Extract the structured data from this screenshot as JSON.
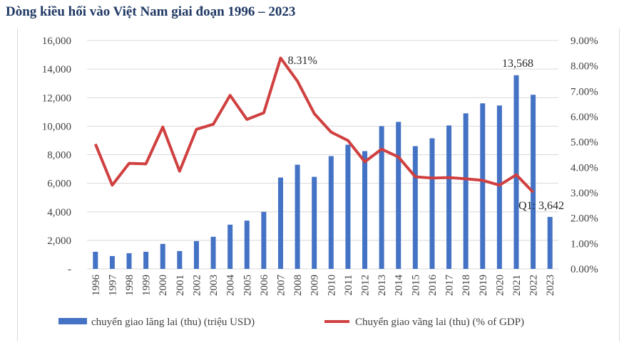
{
  "title": "Dòng kiều hối vào Việt Nam giai đoạn 1996 – 2023",
  "chart_data": {
    "type": "bar+line",
    "categories": [
      "1996",
      "1997",
      "1998",
      "1999",
      "2000",
      "2001",
      "2002",
      "2003",
      "2004",
      "2005",
      "2006",
      "2007",
      "2008",
      "2009",
      "2010",
      "2011",
      "2012",
      "2013",
      "2014",
      "2015",
      "2016",
      "2017",
      "2018",
      "2019",
      "2020",
      "2021",
      "2022",
      "2023"
    ],
    "series": [
      {
        "name": "chuyển giao lăng lai (thu) (triệu USD)",
        "type": "bar",
        "axis": "left",
        "color": "#4472c4",
        "values": [
          1200,
          900,
          1100,
          1200,
          1750,
          1250,
          1950,
          2250,
          3100,
          3380,
          4000,
          6400,
          7300,
          6450,
          7900,
          8700,
          8250,
          10000,
          10300,
          8600,
          9150,
          10050,
          10900,
          11600,
          11450,
          13568,
          12200,
          3642
        ]
      },
      {
        "name": "Chuyển giao vãng lai (thu) (% of GDP)",
        "type": "line",
        "axis": "right",
        "color": "#d04040",
        "values": [
          4.92,
          3.3,
          4.16,
          4.14,
          5.59,
          3.85,
          5.5,
          5.7,
          6.84,
          5.89,
          6.15,
          8.31,
          7.4,
          6.12,
          5.39,
          5.06,
          4.22,
          4.72,
          4.41,
          3.63,
          3.58,
          3.6,
          3.55,
          3.49,
          3.3,
          3.71,
          3.02,
          null
        ]
      }
    ],
    "left_axis": {
      "min": 0,
      "max": 16000,
      "ticks": [
        "-",
        "2,000",
        "4,000",
        "6,000",
        "8,000",
        "10,000",
        "12,000",
        "14,000",
        "16,000"
      ]
    },
    "right_axis": {
      "min": 0,
      "max": 9,
      "ticks": [
        "0.00%",
        "1.00%",
        "2.00%",
        "3.00%",
        "4.00%",
        "5.00%",
        "6.00%",
        "7.00%",
        "8.00%",
        "9.00%"
      ]
    },
    "annotations": [
      {
        "text": "8.31%",
        "category": "2007"
      },
      {
        "text": "13,568",
        "category": "2021"
      },
      {
        "text": "Q1:  3,642",
        "category": "2023"
      }
    ],
    "grid": true,
    "legend": "bottom"
  }
}
